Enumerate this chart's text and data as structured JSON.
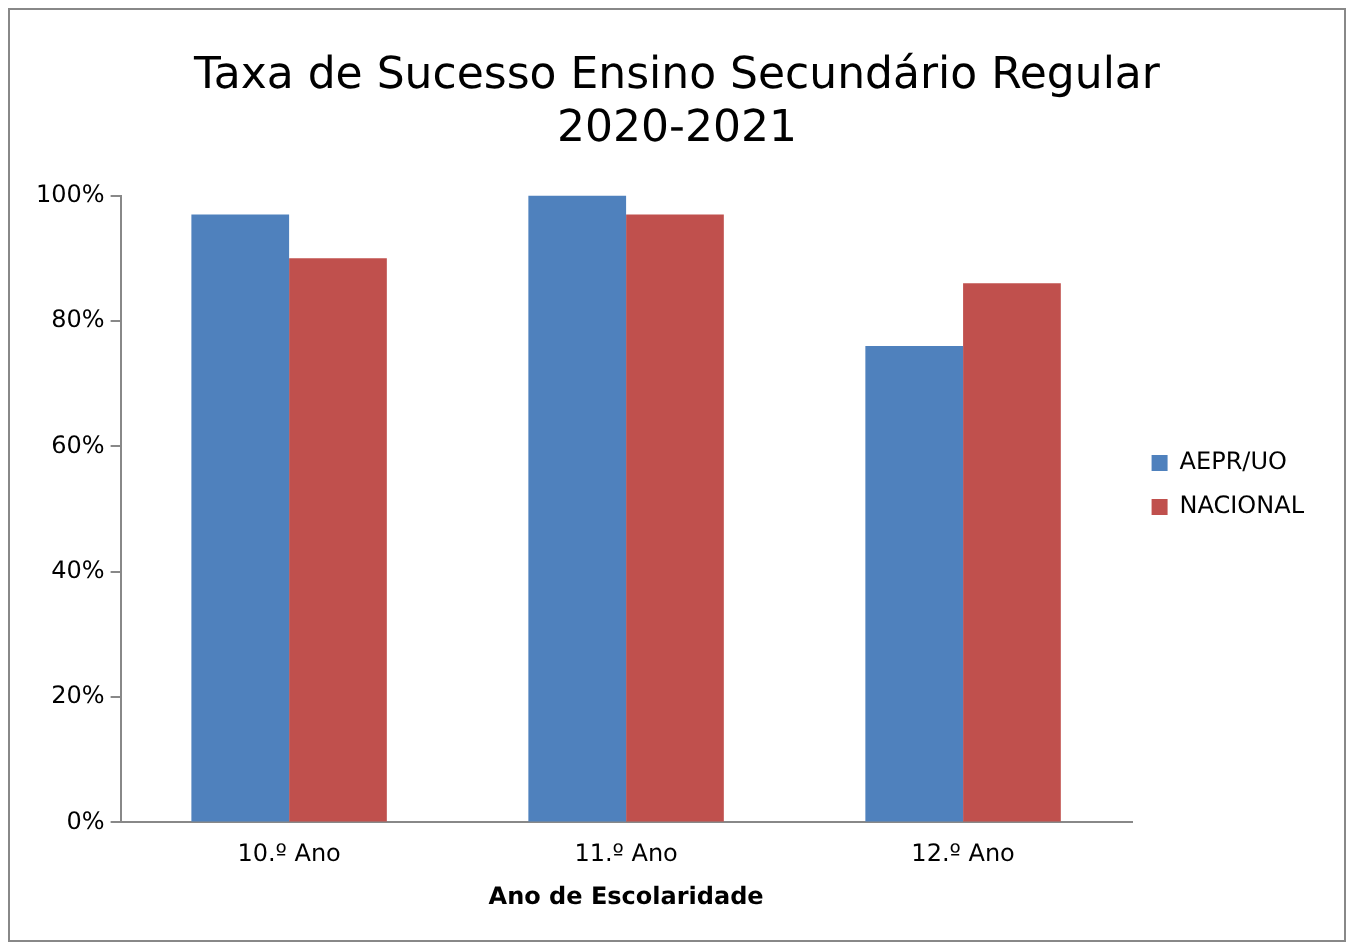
{
  "chart_data": {
    "type": "bar",
    "title": [
      "Taxa de Sucesso Ensino Secundário Regular",
      "2020-2021"
    ],
    "xlabel": "Ano de Escolaridade",
    "categories": [
      "10.º Ano",
      "11.º Ano",
      "12.º Ano"
    ],
    "series": [
      {
        "name": "AEPR/UO",
        "color": "#4f81bd",
        "values": [
          97,
          100,
          76
        ]
      },
      {
        "name": "NACIONAL",
        "color": "#c0504d",
        "values": [
          90,
          97,
          86
        ]
      }
    ],
    "ylim": [
      0,
      100
    ],
    "yticks": [
      {
        "value": 0,
        "label": "0%"
      },
      {
        "value": 20,
        "label": "20%"
      },
      {
        "value": 40,
        "label": "40%"
      },
      {
        "value": 60,
        "label": "60%"
      },
      {
        "value": 80,
        "label": "80%"
      },
      {
        "value": 100,
        "label": "100%"
      }
    ],
    "grid": false,
    "legend": "right"
  }
}
